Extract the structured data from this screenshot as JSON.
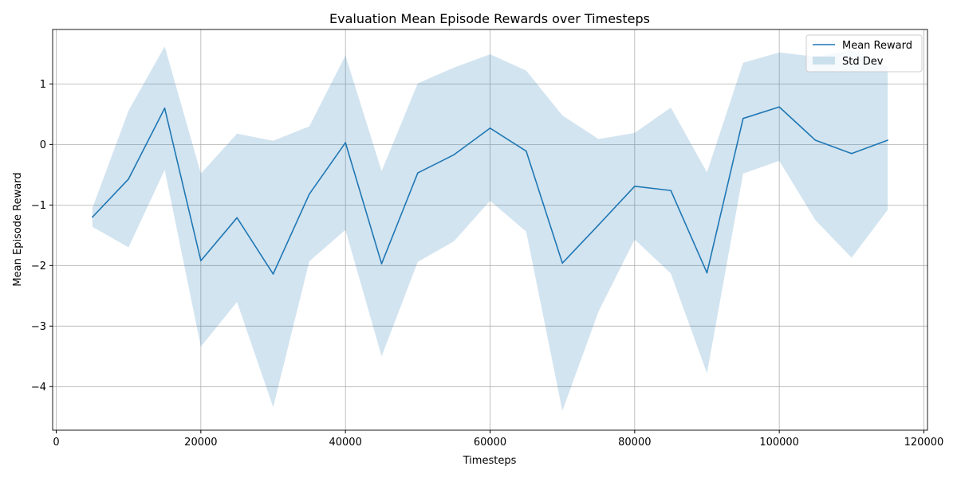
{
  "chart_data": {
    "type": "line",
    "title": "Evaluation Mean Episode Rewards over Timesteps",
    "xlabel": "Timesteps",
    "ylabel": "Mean Episode Reward",
    "xlim": [
      -500,
      120500
    ],
    "ylim": [
      -4.72,
      1.9
    ],
    "xticks": [
      0,
      20000,
      40000,
      60000,
      80000,
      100000,
      120000
    ],
    "yticks": [
      -4,
      -3,
      -2,
      -1,
      0,
      1
    ],
    "grid": true,
    "legend_position": "upper right",
    "x": [
      5000,
      10000,
      15000,
      20000,
      25000,
      30000,
      35000,
      40000,
      45000,
      50000,
      55000,
      60000,
      65000,
      70000,
      75000,
      80000,
      85000,
      90000,
      95000,
      100000,
      105000,
      110000,
      115000
    ],
    "series": [
      {
        "name": "Mean Reward",
        "color": "#1f77b4",
        "values": [
          -1.2,
          -0.57,
          0.6,
          -1.92,
          -1.21,
          -2.14,
          -0.82,
          0.03,
          -1.97,
          -0.47,
          -0.17,
          0.27,
          -0.11,
          -1.96,
          -1.33,
          -0.69,
          -0.76,
          -2.12,
          0.43,
          0.62,
          0.07,
          -0.15,
          0.07
        ]
      },
      {
        "name": "Std Dev",
        "color": "#1f77b4",
        "opacity": 0.2,
        "upper": [
          -1.05,
          0.56,
          1.62,
          -0.48,
          0.18,
          0.06,
          0.3,
          1.47,
          -0.44,
          1.01,
          1.27,
          1.49,
          1.22,
          0.48,
          0.09,
          0.19,
          0.61,
          -0.46,
          1.35,
          1.52,
          1.45,
          1.56,
          1.28
        ],
        "lower": [
          -1.36,
          -1.7,
          -0.42,
          -3.34,
          -2.6,
          -4.34,
          -1.93,
          -1.41,
          -3.5,
          -1.94,
          -1.6,
          -0.93,
          -1.44,
          -4.4,
          -2.76,
          -1.57,
          -2.13,
          -3.78,
          -0.48,
          -0.27,
          -1.25,
          -1.87,
          -1.08
        ]
      }
    ]
  }
}
